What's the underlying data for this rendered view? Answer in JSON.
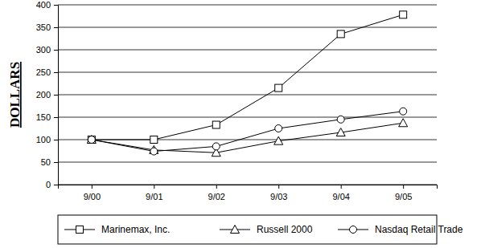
{
  "chart_data": {
    "type": "line",
    "y_label": "DOLLARS",
    "categories": [
      "9/00",
      "9/01",
      "9/02",
      "9/03",
      "9/04",
      "9/05"
    ],
    "series": [
      {
        "name": "Marinemax, Inc.",
        "color": "#000000",
        "marker": "square",
        "values": [
          100,
          100,
          133,
          215,
          335,
          378
        ]
      },
      {
        "name": "Russell 2000",
        "color": "#000000",
        "marker": "triangle",
        "values": [
          100,
          77,
          71,
          97,
          116,
          137
        ]
      },
      {
        "name": "Nasdaq Retail Trade",
        "color": "#000000",
        "marker": "circle",
        "values": [
          100,
          74,
          85,
          125,
          145,
          163
        ]
      }
    ],
    "ylim": [
      0,
      400
    ],
    "yticks": [
      0,
      50,
      100,
      150,
      200,
      250,
      300,
      350,
      400
    ],
    "grid": true,
    "legend": "bottom"
  }
}
